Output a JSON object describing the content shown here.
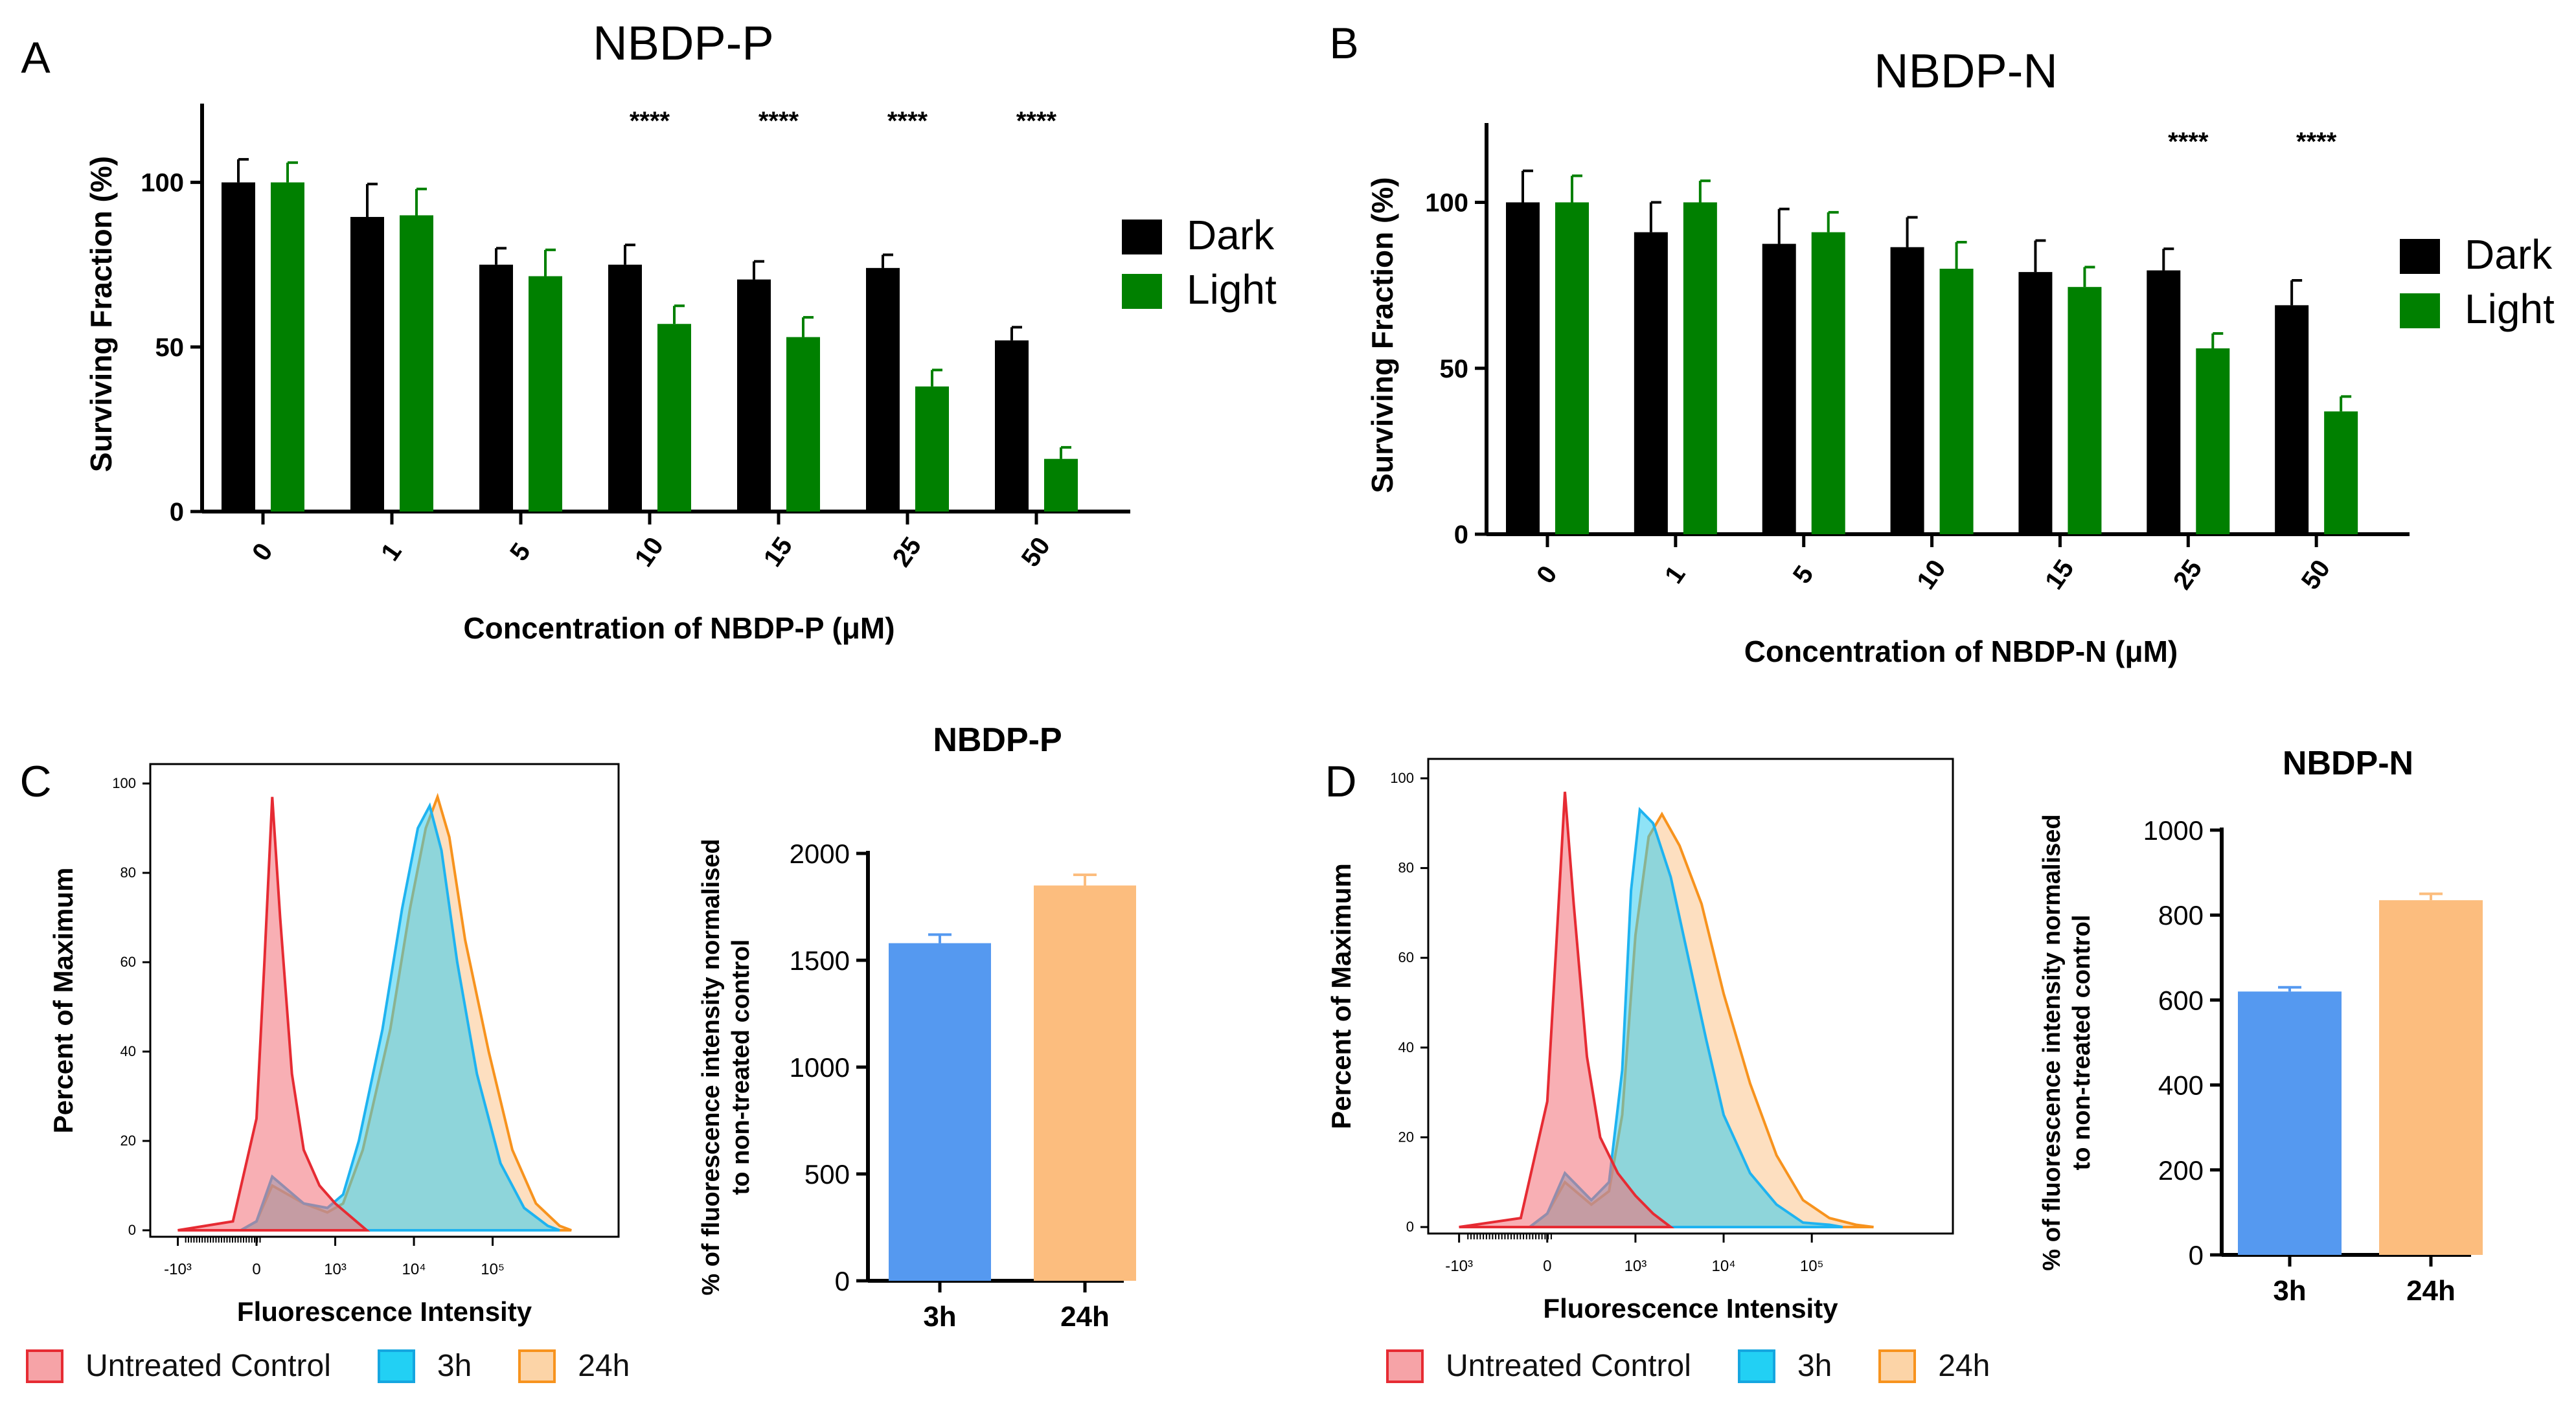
{
  "colors": {
    "dark": "#000000",
    "light": "#008000",
    "h3_bar": "#5599f0",
    "h24_bar": "#fcbd7e",
    "control_fill": "#f26e76",
    "control_stroke": "#e62b33",
    "h3_fill": "#33ccee",
    "h3_stroke": "#1fb3f0",
    "h24_fill": "#fbc48c",
    "h24_stroke": "#f7931e"
  },
  "chart_data": [
    {
      "id": "A",
      "panel_letter": "A",
      "type": "bar",
      "title": "NBDP-P",
      "xlabel": "Concentration of NBDP-P (μM)",
      "ylabel": "Surviving Fraction (%)",
      "ylim": [
        0,
        120
      ],
      "yticks": [
        "0",
        "50",
        "100"
      ],
      "categories": [
        "0",
        "1",
        "5",
        "10",
        "15",
        "25",
        "50"
      ],
      "series": [
        {
          "name": "Dark",
          "color": "#000000",
          "values": [
            100,
            89.5,
            75,
            75,
            70.5,
            74,
            52
          ],
          "errors": [
            7,
            10,
            5,
            6,
            5.5,
            4,
            4
          ]
        },
        {
          "name": "Light",
          "color": "#008000",
          "values": [
            100,
            90,
            71.5,
            57,
            53,
            38,
            16
          ],
          "errors": [
            6,
            8,
            8,
            5.5,
            6,
            5,
            3.5
          ]
        }
      ],
      "annotations": [
        {
          "category": "10",
          "text": "****"
        },
        {
          "category": "15",
          "text": "****"
        },
        {
          "category": "25",
          "text": "****"
        },
        {
          "category": "50",
          "text": "****"
        }
      ],
      "legend": {
        "position": "right",
        "entries": [
          "Dark",
          "Light"
        ]
      }
    },
    {
      "id": "B",
      "panel_letter": "B",
      "type": "bar",
      "title": "NBDP-N",
      "xlabel": "Concentration of NBDP-N (μM)",
      "ylabel": "Surviving Fraction (%)",
      "ylim": [
        0,
        120
      ],
      "yticks": [
        "0",
        "50",
        "100"
      ],
      "categories": [
        "0",
        "1",
        "5",
        "10",
        "15",
        "25",
        "50"
      ],
      "series": [
        {
          "name": "Dark",
          "color": "#000000",
          "values": [
            100,
            91,
            87.5,
            86.5,
            79,
            79.5,
            69
          ],
          "errors": [
            9.5,
            9,
            10.5,
            9,
            9.5,
            6.5,
            7.5
          ]
        },
        {
          "name": "Light",
          "color": "#008000",
          "values": [
            100,
            100,
            91,
            80,
            74.5,
            56,
            37
          ],
          "errors": [
            8,
            6.5,
            6,
            8,
            6,
            4.5,
            4.5
          ]
        }
      ],
      "annotations": [
        {
          "category": "25",
          "text": "****"
        },
        {
          "category": "50",
          "text": "****"
        }
      ],
      "legend": {
        "position": "right",
        "entries": [
          "Dark",
          "Light"
        ]
      }
    },
    {
      "id": "C_hist",
      "panel_letter": "C",
      "type": "area",
      "xlabel": "Fluorescence Intensity",
      "ylabel": "Percent of Maximum",
      "yticks": [
        "0",
        "20",
        "40",
        "60",
        "80",
        "100"
      ],
      "xticks": [
        "-10³",
        "0",
        "10³",
        "10⁴",
        "10⁵"
      ],
      "series": [
        {
          "name": "Untreated Control",
          "key": "control",
          "x": [
            -1,
            -0.3,
            0,
            0.1,
            0.2,
            0.3,
            0.45,
            0.6,
            0.8,
            1,
            1.2,
            1.4
          ],
          "y": [
            0,
            2,
            25,
            60,
            97,
            70,
            35,
            18,
            10,
            6,
            3,
            0
          ]
        },
        {
          "name": "3h",
          "key": "h3",
          "x": [
            -0.2,
            0,
            0.2,
            0.6,
            0.9,
            1.1,
            1.3,
            1.6,
            1.85,
            2.05,
            2.2,
            2.35,
            2.55,
            2.8,
            3.1,
            3.4,
            3.7,
            3.85
          ],
          "y": [
            0,
            2,
            12,
            6,
            5,
            8,
            20,
            45,
            72,
            90,
            95,
            85,
            60,
            35,
            15,
            5,
            1,
            0
          ]
        },
        {
          "name": "24h",
          "key": "h24",
          "x": [
            -0.2,
            0,
            0.2,
            0.6,
            0.9,
            1.1,
            1.35,
            1.7,
            1.95,
            2.15,
            2.3,
            2.45,
            2.65,
            2.95,
            3.25,
            3.55,
            3.85,
            4.0
          ],
          "y": [
            0,
            2,
            10,
            6,
            4,
            6,
            18,
            45,
            72,
            90,
            97,
            88,
            65,
            40,
            18,
            6,
            1,
            0
          ]
        }
      ]
    },
    {
      "id": "C_bar",
      "type": "bar",
      "title": "NBDP-P",
      "xlabel": "",
      "ylabel": "% of fluorescence intensity normalised to non-treated control",
      "ylim": [
        0,
        2000
      ],
      "yticks": [
        "0",
        "500",
        "1000",
        "1500",
        "2000"
      ],
      "categories": [
        "3h",
        "24h"
      ],
      "values": [
        1580,
        1850
      ],
      "errors": [
        40,
        50
      ]
    },
    {
      "id": "D_hist",
      "panel_letter": "D",
      "type": "area",
      "xlabel": "Fluorescence Intensity",
      "ylabel": "Percent of Maximum",
      "yticks": [
        "0",
        "20",
        "40",
        "60",
        "80",
        "100"
      ],
      "xticks": [
        "-10³",
        "0",
        "10³",
        "10⁴",
        "10⁵"
      ],
      "series": [
        {
          "name": "Untreated Control",
          "key": "control",
          "x": [
            -1,
            -0.3,
            0,
            0.1,
            0.2,
            0.3,
            0.45,
            0.6,
            0.8,
            1,
            1.2,
            1.4
          ],
          "y": [
            0,
            2,
            28,
            62,
            97,
            72,
            38,
            20,
            12,
            7,
            3,
            0
          ]
        },
        {
          "name": "3h",
          "key": "h3",
          "x": [
            -0.2,
            0,
            0.2,
            0.5,
            0.7,
            0.85,
            0.95,
            1.05,
            1.2,
            1.4,
            1.6,
            1.8,
            2.0,
            2.3,
            2.6,
            2.9,
            3.2,
            3.35
          ],
          "y": [
            0,
            3,
            12,
            6,
            10,
            35,
            75,
            93,
            90,
            78,
            60,
            42,
            25,
            12,
            5,
            1,
            0.5,
            0
          ]
        },
        {
          "name": "24h",
          "key": "h24",
          "x": [
            -0.2,
            0,
            0.2,
            0.5,
            0.7,
            0.85,
            1.0,
            1.15,
            1.3,
            1.5,
            1.75,
            2.0,
            2.3,
            2.6,
            2.9,
            3.2,
            3.5,
            3.7
          ],
          "y": [
            0,
            3,
            10,
            5,
            8,
            25,
            65,
            87,
            92,
            85,
            72,
            52,
            32,
            16,
            6,
            2,
            0.5,
            0
          ]
        }
      ]
    },
    {
      "id": "D_bar",
      "type": "bar",
      "title": "NBDP-N",
      "xlabel": "",
      "ylabel": "% of fluorescence intensity normalised to non-treated control",
      "ylim": [
        0,
        1000
      ],
      "yticks": [
        "0",
        "200",
        "400",
        "600",
        "800",
        "1000"
      ],
      "categories": [
        "3h",
        "24h"
      ],
      "values": [
        620,
        835
      ],
      "errors": [
        10,
        15
      ]
    }
  ],
  "legend_bottom": {
    "C": [
      "Untreated Control",
      "3h",
      "24h"
    ],
    "D": [
      "Untreated Control",
      "3h",
      "24h"
    ]
  }
}
